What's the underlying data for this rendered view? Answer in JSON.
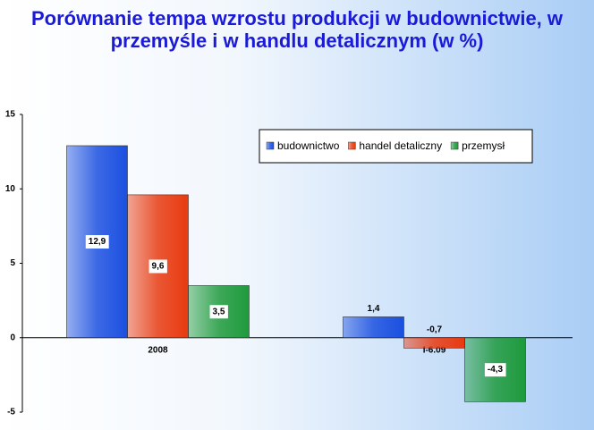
{
  "chart_data": {
    "type": "bar",
    "title": "Porównanie tempa wzrostu produkcji w budownictwie, w przemyśle i w handlu detalicznym (w %)",
    "categories": [
      "2008",
      "I-6.09"
    ],
    "series": [
      {
        "name": "budownictwo",
        "color": "#1a4fe0",
        "values": [
          12.9,
          1.4
        ],
        "value_labels": [
          "12,9",
          "1,4"
        ]
      },
      {
        "name": "handel detaliczny",
        "color": "#e83a10",
        "values": [
          9.6,
          -0.7
        ],
        "value_labels": [
          "9,6",
          "-0,7"
        ]
      },
      {
        "name": "przemysł",
        "color": "#1e9a3c",
        "values": [
          3.5,
          -4.3
        ],
        "value_labels": [
          "3,5",
          "-4,3"
        ]
      }
    ],
    "ylim": [
      -5,
      15
    ],
    "yticks": [
      -5,
      0,
      5,
      10,
      15
    ],
    "grid": false,
    "legend": "top-right"
  }
}
